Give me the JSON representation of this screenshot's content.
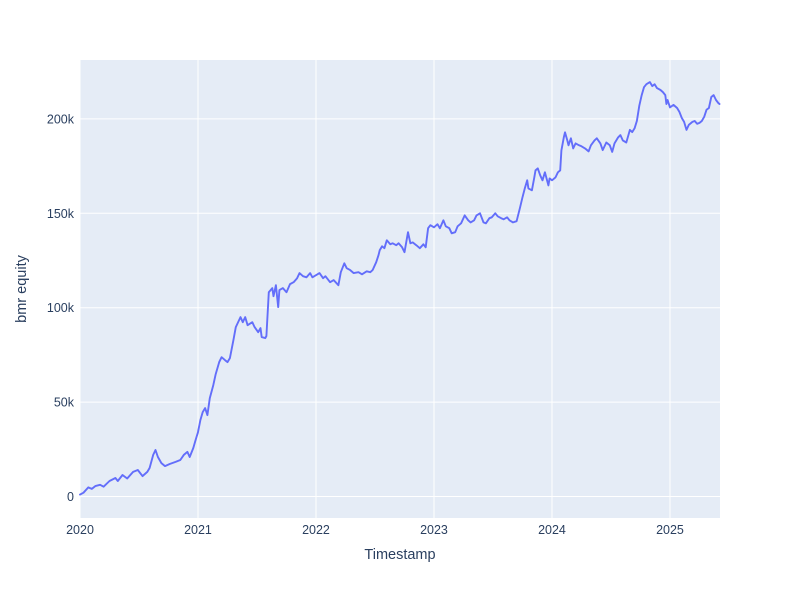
{
  "figure": {
    "background_color": "#ffffff"
  },
  "chart_data": {
    "type": "line",
    "title": "",
    "xlabel": "Timestamp",
    "ylabel": "bmr equity",
    "series_name": "bmr equity",
    "legend": "none",
    "grid": "on",
    "plot_bg_color": "#e5ecf6",
    "grid_color": "#ffffff",
    "line_color": "#636efa",
    "text_color": "#2a3f5f",
    "y_unit": "k (thousands)",
    "xlim": [
      2020.0,
      2025.424
    ],
    "ylim_k": [
      -11.4,
      231.2
    ],
    "xticks": [
      {
        "value": 2020,
        "label": "2020"
      },
      {
        "value": 2021,
        "label": "2021"
      },
      {
        "value": 2022,
        "label": "2022"
      },
      {
        "value": 2023,
        "label": "2023"
      },
      {
        "value": 2024,
        "label": "2024"
      },
      {
        "value": 2025,
        "label": "2025"
      }
    ],
    "yticks": [
      {
        "value": 0,
        "label": "0"
      },
      {
        "value": 50,
        "label": "50k"
      },
      {
        "value": 100,
        "label": "100k"
      },
      {
        "value": 150,
        "label": "150k"
      },
      {
        "value": 200,
        "label": "200k"
      }
    ],
    "points_year_valuek": [
      [
        2020.0,
        1.0
      ],
      [
        2020.03,
        2.0
      ],
      [
        2020.07,
        4.8
      ],
      [
        2020.1,
        4.0
      ],
      [
        2020.13,
        5.5
      ],
      [
        2020.17,
        6.2
      ],
      [
        2020.2,
        5.2
      ],
      [
        2020.25,
        8.2
      ],
      [
        2020.3,
        9.8
      ],
      [
        2020.32,
        8.2
      ],
      [
        2020.36,
        11.4
      ],
      [
        2020.4,
        9.5
      ],
      [
        2020.45,
        13.0
      ],
      [
        2020.49,
        14.0
      ],
      [
        2020.53,
        10.8
      ],
      [
        2020.57,
        13.0
      ],
      [
        2020.59,
        15.1
      ],
      [
        2020.62,
        22.0
      ],
      [
        2020.64,
        24.6
      ],
      [
        2020.66,
        20.9
      ],
      [
        2020.69,
        17.7
      ],
      [
        2020.72,
        16.1
      ],
      [
        2020.76,
        17.2
      ],
      [
        2020.81,
        18.3
      ],
      [
        2020.85,
        19.3
      ],
      [
        2020.88,
        22.0
      ],
      [
        2020.91,
        23.6
      ],
      [
        2020.93,
        20.9
      ],
      [
        2020.96,
        25.7
      ],
      [
        2020.98,
        29.9
      ],
      [
        2021.0,
        34.1
      ],
      [
        2021.02,
        40.5
      ],
      [
        2021.04,
        44.7
      ],
      [
        2021.06,
        46.8
      ],
      [
        2021.08,
        43.1
      ],
      [
        2021.1,
        52.1
      ],
      [
        2021.13,
        59.0
      ],
      [
        2021.15,
        64.8
      ],
      [
        2021.18,
        71.2
      ],
      [
        2021.2,
        73.8
      ],
      [
        2021.23,
        72.2
      ],
      [
        2021.25,
        71.2
      ],
      [
        2021.27,
        73.3
      ],
      [
        2021.3,
        82.8
      ],
      [
        2021.32,
        89.7
      ],
      [
        2021.36,
        95.0
      ],
      [
        2021.38,
        92.3
      ],
      [
        2021.4,
        95.0
      ],
      [
        2021.42,
        90.7
      ],
      [
        2021.46,
        92.3
      ],
      [
        2021.48,
        89.7
      ],
      [
        2021.51,
        87.0
      ],
      [
        2021.53,
        89.2
      ],
      [
        2021.54,
        84.4
      ],
      [
        2021.57,
        83.9
      ],
      [
        2021.58,
        85.0
      ],
      [
        2021.6,
        108.2
      ],
      [
        2021.63,
        110.4
      ],
      [
        2021.64,
        106.1
      ],
      [
        2021.66,
        111.9
      ],
      [
        2021.68,
        100.3
      ],
      [
        2021.69,
        109.3
      ],
      [
        2021.72,
        110.4
      ],
      [
        2021.75,
        108.2
      ],
      [
        2021.78,
        112.5
      ],
      [
        2021.81,
        113.5
      ],
      [
        2021.84,
        115.6
      ],
      [
        2021.86,
        118.3
      ],
      [
        2021.89,
        116.7
      ],
      [
        2021.92,
        116.1
      ],
      [
        2021.95,
        118.3
      ],
      [
        2021.97,
        116.1
      ],
      [
        2022.0,
        117.2
      ],
      [
        2022.03,
        118.3
      ],
      [
        2022.06,
        115.6
      ],
      [
        2022.08,
        116.7
      ],
      [
        2022.12,
        113.5
      ],
      [
        2022.15,
        114.6
      ],
      [
        2022.19,
        111.9
      ],
      [
        2022.21,
        118.8
      ],
      [
        2022.24,
        123.5
      ],
      [
        2022.26,
        120.9
      ],
      [
        2022.29,
        119.9
      ],
      [
        2022.32,
        118.3
      ],
      [
        2022.36,
        118.8
      ],
      [
        2022.39,
        117.7
      ],
      [
        2022.43,
        119.3
      ],
      [
        2022.46,
        118.8
      ],
      [
        2022.48,
        119.9
      ],
      [
        2022.51,
        124.1
      ],
      [
        2022.53,
        127.8
      ],
      [
        2022.54,
        130.4
      ],
      [
        2022.56,
        132.5
      ],
      [
        2022.58,
        131.5
      ],
      [
        2022.6,
        135.7
      ],
      [
        2022.63,
        133.6
      ],
      [
        2022.65,
        134.1
      ],
      [
        2022.68,
        133.1
      ],
      [
        2022.7,
        134.1
      ],
      [
        2022.73,
        132.0
      ],
      [
        2022.75,
        129.4
      ],
      [
        2022.78,
        140.0
      ],
      [
        2022.8,
        134.1
      ],
      [
        2022.82,
        134.6
      ],
      [
        2022.85,
        133.1
      ],
      [
        2022.88,
        131.5
      ],
      [
        2022.91,
        133.6
      ],
      [
        2022.93,
        132.0
      ],
      [
        2022.95,
        142.1
      ],
      [
        2022.97,
        143.7
      ],
      [
        2023.0,
        142.6
      ],
      [
        2023.03,
        144.2
      ],
      [
        2023.05,
        142.1
      ],
      [
        2023.08,
        146.3
      ],
      [
        2023.1,
        143.1
      ],
      [
        2023.13,
        142.1
      ],
      [
        2023.15,
        139.4
      ],
      [
        2023.18,
        140.0
      ],
      [
        2023.2,
        143.1
      ],
      [
        2023.23,
        144.7
      ],
      [
        2023.26,
        148.9
      ],
      [
        2023.29,
        146.3
      ],
      [
        2023.31,
        145.2
      ],
      [
        2023.34,
        146.3
      ],
      [
        2023.36,
        148.9
      ],
      [
        2023.39,
        150.0
      ],
      [
        2023.42,
        145.2
      ],
      [
        2023.44,
        144.7
      ],
      [
        2023.47,
        147.4
      ],
      [
        2023.49,
        147.9
      ],
      [
        2023.52,
        150.0
      ],
      [
        2023.54,
        148.4
      ],
      [
        2023.57,
        147.4
      ],
      [
        2023.59,
        146.8
      ],
      [
        2023.62,
        147.9
      ],
      [
        2023.64,
        146.3
      ],
      [
        2023.67,
        145.2
      ],
      [
        2023.7,
        145.8
      ],
      [
        2023.73,
        153.2
      ],
      [
        2023.75,
        158.5
      ],
      [
        2023.77,
        163.2
      ],
      [
        2023.79,
        167.5
      ],
      [
        2023.8,
        163.2
      ],
      [
        2023.83,
        162.2
      ],
      [
        2023.85,
        169.0
      ],
      [
        2023.86,
        172.7
      ],
      [
        2023.88,
        173.8
      ],
      [
        2023.9,
        170.1
      ],
      [
        2023.92,
        167.5
      ],
      [
        2023.94,
        171.7
      ],
      [
        2023.97,
        164.8
      ],
      [
        2023.98,
        168.5
      ],
      [
        2024.0,
        167.5
      ],
      [
        2024.03,
        169.0
      ],
      [
        2024.05,
        171.7
      ],
      [
        2024.07,
        172.7
      ],
      [
        2024.08,
        183.3
      ],
      [
        2024.1,
        190.2
      ],
      [
        2024.11,
        192.9
      ],
      [
        2024.13,
        188.6
      ],
      [
        2024.14,
        186.0
      ],
      [
        2024.16,
        189.7
      ],
      [
        2024.18,
        184.4
      ],
      [
        2024.2,
        187.0
      ],
      [
        2024.23,
        186.0
      ],
      [
        2024.25,
        185.5
      ],
      [
        2024.28,
        184.4
      ],
      [
        2024.31,
        182.8
      ],
      [
        2024.33,
        186.0
      ],
      [
        2024.36,
        188.6
      ],
      [
        2024.38,
        189.7
      ],
      [
        2024.41,
        187.0
      ],
      [
        2024.43,
        183.5
      ],
      [
        2024.46,
        187.5
      ],
      [
        2024.49,
        186.0
      ],
      [
        2024.51,
        182.5
      ],
      [
        2024.53,
        187.0
      ],
      [
        2024.56,
        190.2
      ],
      [
        2024.58,
        191.4
      ],
      [
        2024.6,
        188.6
      ],
      [
        2024.63,
        187.5
      ],
      [
        2024.66,
        194.2
      ],
      [
        2024.68,
        193.0
      ],
      [
        2024.7,
        195.0
      ],
      [
        2024.72,
        199.0
      ],
      [
        2024.74,
        207.0
      ],
      [
        2024.76,
        212.6
      ],
      [
        2024.78,
        216.8
      ],
      [
        2024.8,
        218.4
      ],
      [
        2024.83,
        219.5
      ],
      [
        2024.85,
        217.4
      ],
      [
        2024.87,
        218.4
      ],
      [
        2024.89,
        216.3
      ],
      [
        2024.92,
        215.3
      ],
      [
        2024.94,
        214.2
      ],
      [
        2024.96,
        212.6
      ],
      [
        2024.97,
        207.9
      ],
      [
        2024.98,
        210.0
      ],
      [
        2025.0,
        206.1
      ],
      [
        2025.03,
        207.4
      ],
      [
        2025.06,
        205.8
      ],
      [
        2025.08,
        203.7
      ],
      [
        2025.1,
        200.5
      ],
      [
        2025.12,
        198.4
      ],
      [
        2025.14,
        194.2
      ],
      [
        2025.16,
        196.8
      ],
      [
        2025.19,
        198.4
      ],
      [
        2025.21,
        198.9
      ],
      [
        2025.23,
        197.4
      ],
      [
        2025.25,
        197.9
      ],
      [
        2025.27,
        198.9
      ],
      [
        2025.29,
        201.1
      ],
      [
        2025.31,
        204.8
      ],
      [
        2025.33,
        205.8
      ],
      [
        2025.35,
        211.6
      ],
      [
        2025.37,
        212.6
      ],
      [
        2025.39,
        210.0
      ],
      [
        2025.41,
        208.4
      ],
      [
        2025.42,
        207.9
      ]
    ]
  }
}
